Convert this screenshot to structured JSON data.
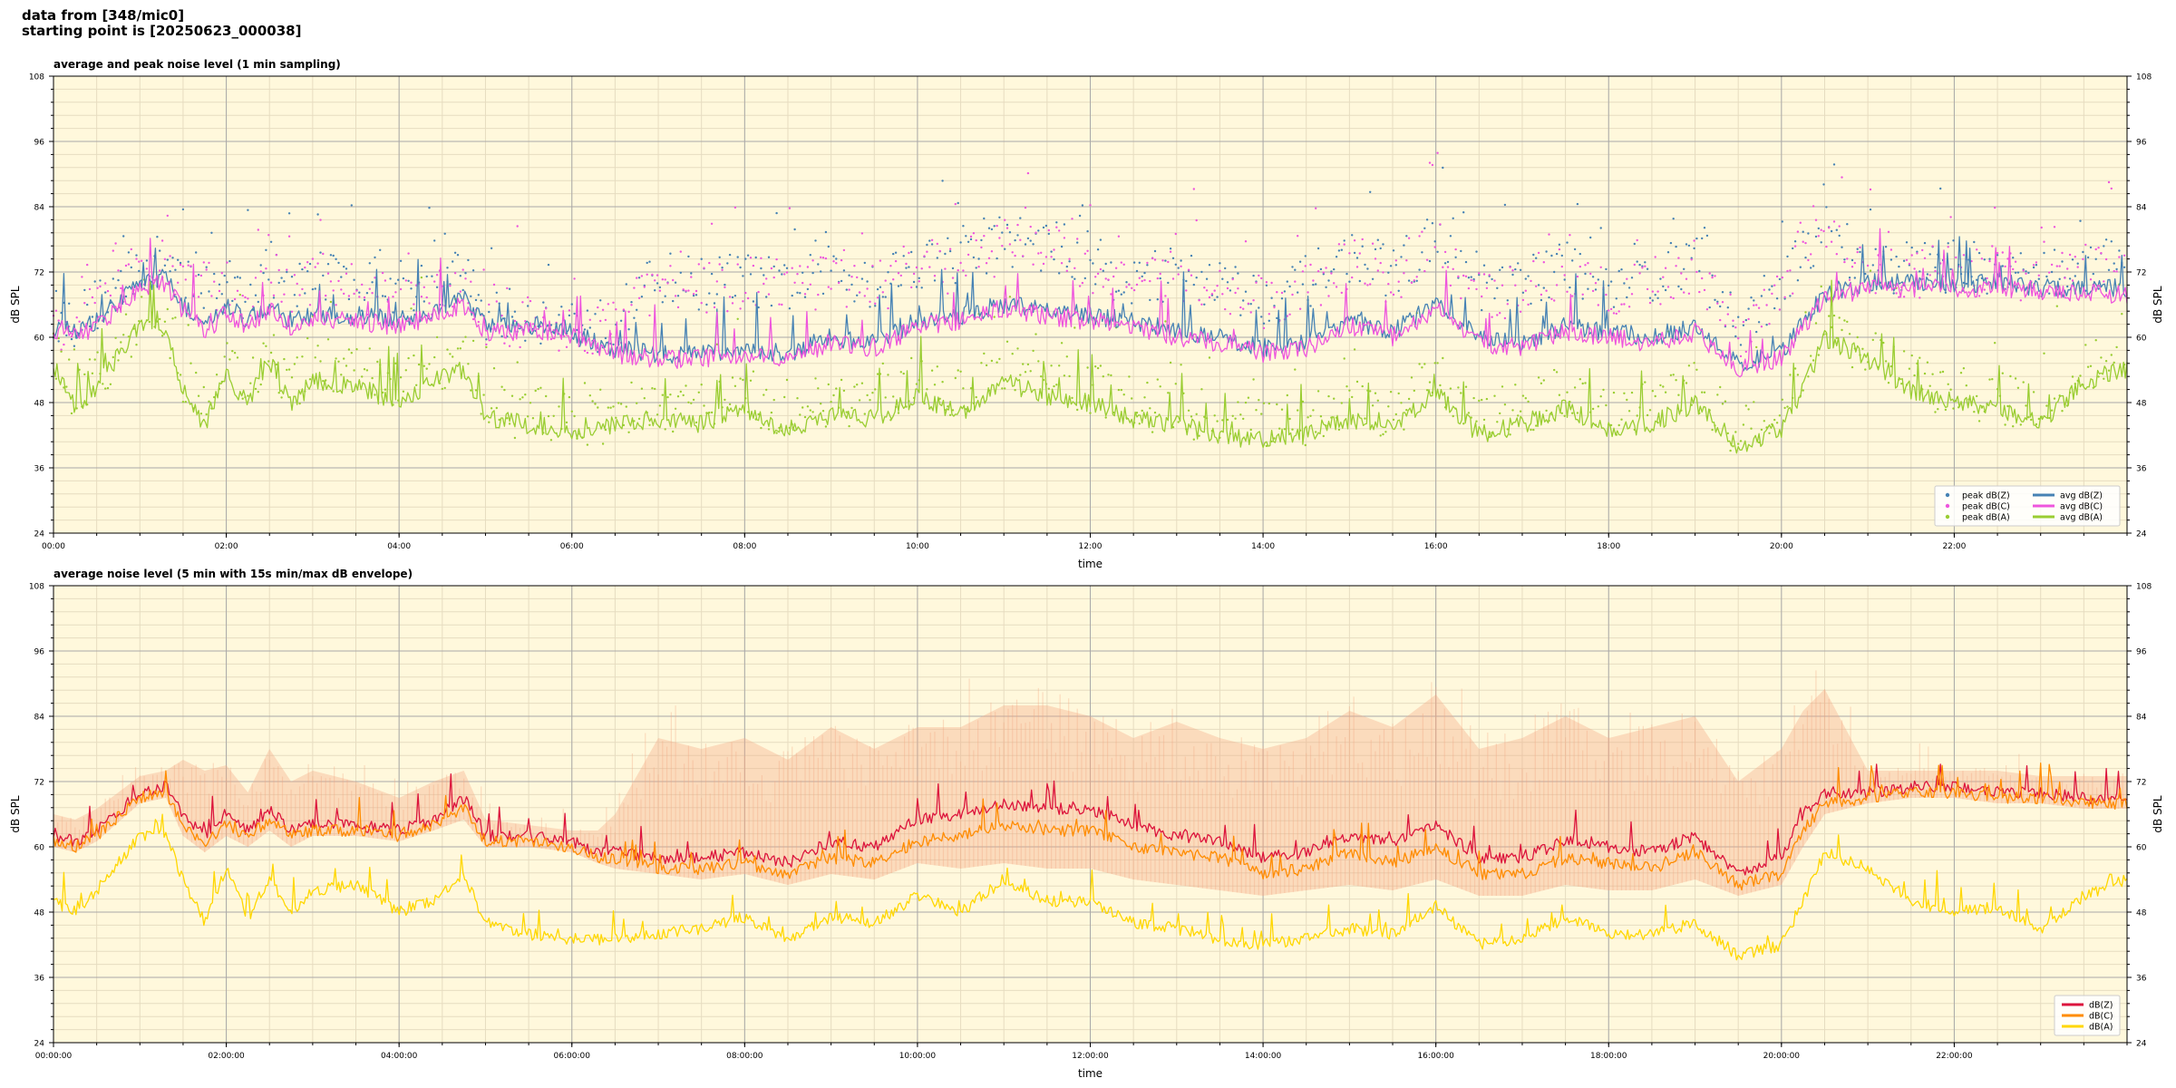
{
  "header": {
    "line1": "data from [348/mic0]",
    "line2": "starting point is [20250623_000038]"
  },
  "colors": {
    "plot_bg": "#fff8dc",
    "grid_major": "#a9a9a9",
    "grid_minor": "#e6dcc0",
    "z": "#4682b4",
    "c": "#ee55dd",
    "a": "#9acd32",
    "z5": "#dc143c",
    "c5": "#ff8c00",
    "a5": "#ffd700",
    "envelope": "#f4a582"
  },
  "chart_data": [
    {
      "type": "line",
      "title": "average and peak noise level (1 min sampling)",
      "xlabel": "time",
      "ylabel": "dB SPL",
      "ylim": [
        24,
        108
      ],
      "yticks": [
        "24",
        "36",
        "48",
        "60",
        "72",
        "84",
        "96",
        "108"
      ],
      "xlim_hours": [
        0,
        24
      ],
      "xticks": [
        "00:00",
        "02:00",
        "04:00",
        "06:00",
        "08:00",
        "10:00",
        "12:00",
        "14:00",
        "16:00",
        "18:00",
        "20:00",
        "22:00"
      ],
      "grid": true,
      "legend_position": "lower-right",
      "legend": [
        {
          "label": "peak dB(Z)",
          "kind": "dot",
          "color_key": "z"
        },
        {
          "label": "peak dB(C)",
          "kind": "dot",
          "color_key": "c"
        },
        {
          "label": "peak dB(A)",
          "kind": "dot",
          "color_key": "a"
        },
        {
          "label": "avg dB(Z)",
          "kind": "line",
          "color_key": "z"
        },
        {
          "label": "avg dB(C)",
          "kind": "line",
          "color_key": "c"
        },
        {
          "label": "avg dB(A)",
          "kind": "line",
          "color_key": "a"
        }
      ],
      "x_hours": [
        0,
        0.25,
        0.5,
        1,
        1.3,
        1.5,
        1.75,
        2,
        2.25,
        2.5,
        2.75,
        3,
        3.5,
        4,
        4.4,
        4.75,
        5,
        5.5,
        6,
        6.3,
        6.5,
        7,
        7.5,
        8,
        8.5,
        9,
        9.5,
        10,
        10.5,
        11,
        11.5,
        12,
        12.5,
        13,
        13.5,
        14,
        14.5,
        15,
        15.5,
        16,
        16.5,
        17,
        17.5,
        18,
        18.5,
        19,
        19.5,
        20,
        20.25,
        20.5,
        21,
        21.5,
        22,
        22.5,
        23,
        23.5,
        24
      ],
      "series": [
        {
          "name": "avg dB(Z)",
          "color_key": "z",
          "values": [
            62,
            61,
            63,
            70,
            71,
            66,
            62,
            65,
            63,
            66,
            63,
            64,
            64,
            63,
            65,
            67,
            62,
            62,
            61,
            59,
            58,
            57,
            57,
            58,
            57,
            60,
            59,
            63,
            64,
            66,
            65,
            64,
            63,
            61,
            60,
            58,
            59,
            63,
            61,
            66,
            60,
            59,
            62,
            61,
            60,
            62,
            55,
            57,
            63,
            68,
            70,
            70,
            70,
            70,
            69,
            69,
            69
          ]
        },
        {
          "name": "avg dB(C)",
          "color_key": "c",
          "values": [
            61,
            60,
            62,
            69,
            70,
            65,
            61,
            64,
            62,
            65,
            62,
            63,
            63,
            62,
            64,
            66,
            61,
            61,
            60,
            58,
            57,
            56,
            56,
            57,
            56,
            59,
            58,
            62,
            63,
            65,
            64,
            63,
            62,
            60,
            59,
            57,
            58,
            62,
            60,
            65,
            59,
            58,
            61,
            60,
            59,
            61,
            54,
            56,
            62,
            67,
            69,
            69,
            69,
            69,
            68,
            68,
            68
          ]
        },
        {
          "name": "avg dB(A)",
          "color_key": "a",
          "values": [
            55,
            47,
            51,
            62,
            62,
            50,
            44,
            53,
            48,
            56,
            47,
            52,
            51,
            48,
            52,
            54,
            45,
            44,
            43,
            43,
            44,
            45,
            44,
            47,
            42,
            46,
            45,
            49,
            46,
            52,
            49,
            48,
            45,
            44,
            42,
            41,
            42,
            45,
            43,
            50,
            42,
            44,
            47,
            43,
            44,
            48,
            40,
            43,
            50,
            60,
            56,
            50,
            48,
            47,
            44,
            52,
            54
          ]
        },
        {
          "name": "peak dB(Z)",
          "kind": "dots",
          "color_key": "z",
          "values": [
            64,
            63,
            66,
            73,
            74,
            72,
            70,
            70,
            68,
            73,
            68,
            72,
            70,
            67,
            69,
            72,
            64,
            64,
            63,
            62,
            63,
            71,
            70,
            71,
            69,
            72,
            70,
            74,
            74,
            78,
            77,
            74,
            70,
            72,
            70,
            67,
            70,
            75,
            72,
            78,
            68,
            70,
            73,
            70,
            71,
            74,
            62,
            68,
            76,
            80,
            73,
            73,
            73,
            73,
            72,
            73,
            74
          ]
        },
        {
          "name": "peak dB(C)",
          "kind": "dots",
          "color_key": "c",
          "values": [
            63,
            62,
            65,
            72,
            73,
            71,
            69,
            69,
            67,
            72,
            67,
            71,
            69,
            66,
            68,
            71,
            63,
            63,
            62,
            61,
            62,
            70,
            69,
            70,
            68,
            71,
            69,
            73,
            73,
            77,
            76,
            73,
            69,
            71,
            69,
            66,
            69,
            74,
            71,
            77,
            67,
            69,
            72,
            69,
            70,
            73,
            61,
            67,
            75,
            79,
            72,
            72,
            72,
            72,
            71,
            72,
            73
          ]
        },
        {
          "name": "peak dB(A)",
          "kind": "dots",
          "color_key": "a",
          "values": [
            58,
            49,
            53,
            63,
            63,
            53,
            47,
            56,
            51,
            58,
            50,
            55,
            54,
            51,
            55,
            56,
            47,
            46,
            45,
            45,
            46,
            48,
            47,
            50,
            45,
            49,
            48,
            52,
            49,
            55,
            52,
            51,
            48,
            47,
            45,
            44,
            45,
            48,
            46,
            53,
            45,
            47,
            50,
            46,
            47,
            51,
            42,
            46,
            53,
            62,
            58,
            52,
            50,
            49,
            46,
            54,
            56
          ]
        }
      ]
    },
    {
      "type": "line",
      "title": "average noise level (5 min with 15s min/max dB envelope)",
      "xlabel": "time",
      "ylabel": "dB SPL",
      "ylim": [
        24,
        108
      ],
      "yticks": [
        "24",
        "36",
        "48",
        "60",
        "72",
        "84",
        "96",
        "108"
      ],
      "xlim_hours": [
        0,
        24
      ],
      "xticks": [
        "00:00:00",
        "02:00:00",
        "04:00:00",
        "06:00:00",
        "08:00:00",
        "10:00:00",
        "12:00:00",
        "14:00:00",
        "16:00:00",
        "18:00:00",
        "20:00:00",
        "22:00:00"
      ],
      "grid": true,
      "legend_position": "lower-right",
      "legend": [
        {
          "label": "dB(Z)",
          "kind": "line",
          "color_key": "z5"
        },
        {
          "label": "dB(C)",
          "kind": "line",
          "color_key": "c5"
        },
        {
          "label": "dB(A)",
          "kind": "line",
          "color_key": "a5"
        }
      ],
      "x_hours": [
        0,
        0.25,
        0.5,
        1,
        1.3,
        1.5,
        1.75,
        2,
        2.25,
        2.5,
        2.75,
        3,
        3.5,
        4,
        4.4,
        4.75,
        5,
        5.5,
        6,
        6.3,
        6.5,
        7,
        7.5,
        8,
        8.5,
        9,
        9.5,
        10,
        10.5,
        11,
        11.5,
        12,
        12.5,
        13,
        13.5,
        14,
        14.5,
        15,
        15.5,
        16,
        16.5,
        17,
        17.5,
        18,
        18.5,
        19,
        19.5,
        20,
        20.25,
        20.5,
        21,
        21.5,
        22,
        22.5,
        23,
        23.5,
        24
      ],
      "series": [
        {
          "name": "dB(Z)",
          "color_key": "z5",
          "values": [
            62,
            61,
            63,
            70,
            71,
            66,
            62,
            66,
            63,
            67,
            63,
            64,
            64,
            63,
            65,
            69,
            62,
            62,
            61,
            59,
            59,
            58,
            58,
            59,
            57,
            61,
            60,
            65,
            66,
            68,
            67,
            67,
            64,
            62,
            61,
            58,
            59,
            62,
            61,
            64,
            58,
            58,
            61,
            60,
            59,
            62,
            55,
            58,
            66,
            70,
            70,
            71,
            71,
            70,
            70,
            69,
            69
          ]
        },
        {
          "name": "dB(C)",
          "color_key": "c5",
          "values": [
            61,
            60,
            62,
            69,
            70,
            64,
            61,
            64,
            62,
            65,
            62,
            63,
            63,
            62,
            64,
            67,
            61,
            61,
            60,
            58,
            58,
            56,
            56,
            57,
            55,
            58,
            57,
            61,
            62,
            64,
            63,
            63,
            60,
            59,
            58,
            55,
            56,
            59,
            57,
            60,
            55,
            55,
            58,
            57,
            56,
            59,
            53,
            55,
            63,
            68,
            69,
            70,
            70,
            69,
            69,
            68,
            68
          ]
        },
        {
          "name": "dB(A)",
          "color_key": "a5",
          "values": [
            50,
            48,
            52,
            62,
            62,
            54,
            46,
            56,
            47,
            54,
            48,
            52,
            53,
            48,
            50,
            55,
            46,
            44,
            43,
            43,
            43,
            44,
            45,
            47,
            43,
            47,
            46,
            51,
            48,
            54,
            50,
            50,
            46,
            45,
            43,
            42,
            43,
            45,
            44,
            49,
            42,
            43,
            47,
            44,
            44,
            46,
            40,
            42,
            50,
            59,
            56,
            50,
            48,
            49,
            45,
            51,
            54
          ]
        },
        {
          "name": "max envelope",
          "kind": "envelope",
          "color_key": "envelope",
          "values": [
            66,
            65,
            67,
            73,
            74,
            76,
            74,
            75,
            70,
            78,
            72,
            74,
            72,
            69,
            72,
            74,
            65,
            64,
            63,
            63,
            66,
            80,
            78,
            80,
            76,
            82,
            78,
            82,
            82,
            86,
            86,
            84,
            80,
            83,
            80,
            78,
            80,
            85,
            82,
            88,
            78,
            80,
            84,
            80,
            82,
            84,
            72,
            78,
            85,
            89,
            74,
            74,
            74,
            74,
            73,
            73,
            73
          ]
        },
        {
          "name": "min envelope",
          "kind": "envelope",
          "color_key": "envelope",
          "values": [
            60,
            59,
            61,
            68,
            69,
            62,
            59,
            62,
            60,
            63,
            60,
            62,
            62,
            61,
            63,
            65,
            60,
            60,
            59,
            57,
            56,
            55,
            54,
            55,
            53,
            55,
            54,
            57,
            56,
            57,
            56,
            56,
            54,
            53,
            52,
            51,
            52,
            53,
            52,
            54,
            51,
            51,
            53,
            52,
            52,
            54,
            51,
            53,
            60,
            66,
            68,
            69,
            69,
            68,
            68,
            67,
            67
          ]
        }
      ]
    }
  ]
}
